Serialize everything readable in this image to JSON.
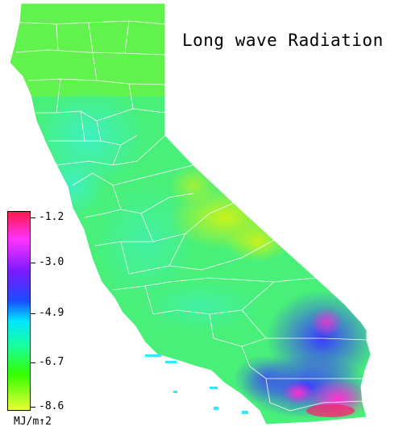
{
  "title": "Long wave Radiation",
  "legend": {
    "unit": "MJ/m↑2",
    "ticks": [
      "-1.2",
      "-3.0",
      "-4.9",
      "-6.7",
      "-8.6"
    ],
    "colors": [
      "#ff1a4a",
      "#ff33ff",
      "#7a1aff",
      "#1a4dff",
      "#00e5ff",
      "#1aff9a",
      "#33ff00",
      "#eaff33"
    ]
  },
  "colors": {
    "boundary": "#ffffff",
    "base": "#3cf06a",
    "north": "#6cf23a",
    "coast": "#2ee8b8",
    "valley": "#58f0a8",
    "highland": "#b8f21e",
    "desert_blue": "#3a3aff",
    "desert_purple": "#b31ad8",
    "desert_magenta": "#ff30d0",
    "hot_red": "#ff1a6a"
  }
}
